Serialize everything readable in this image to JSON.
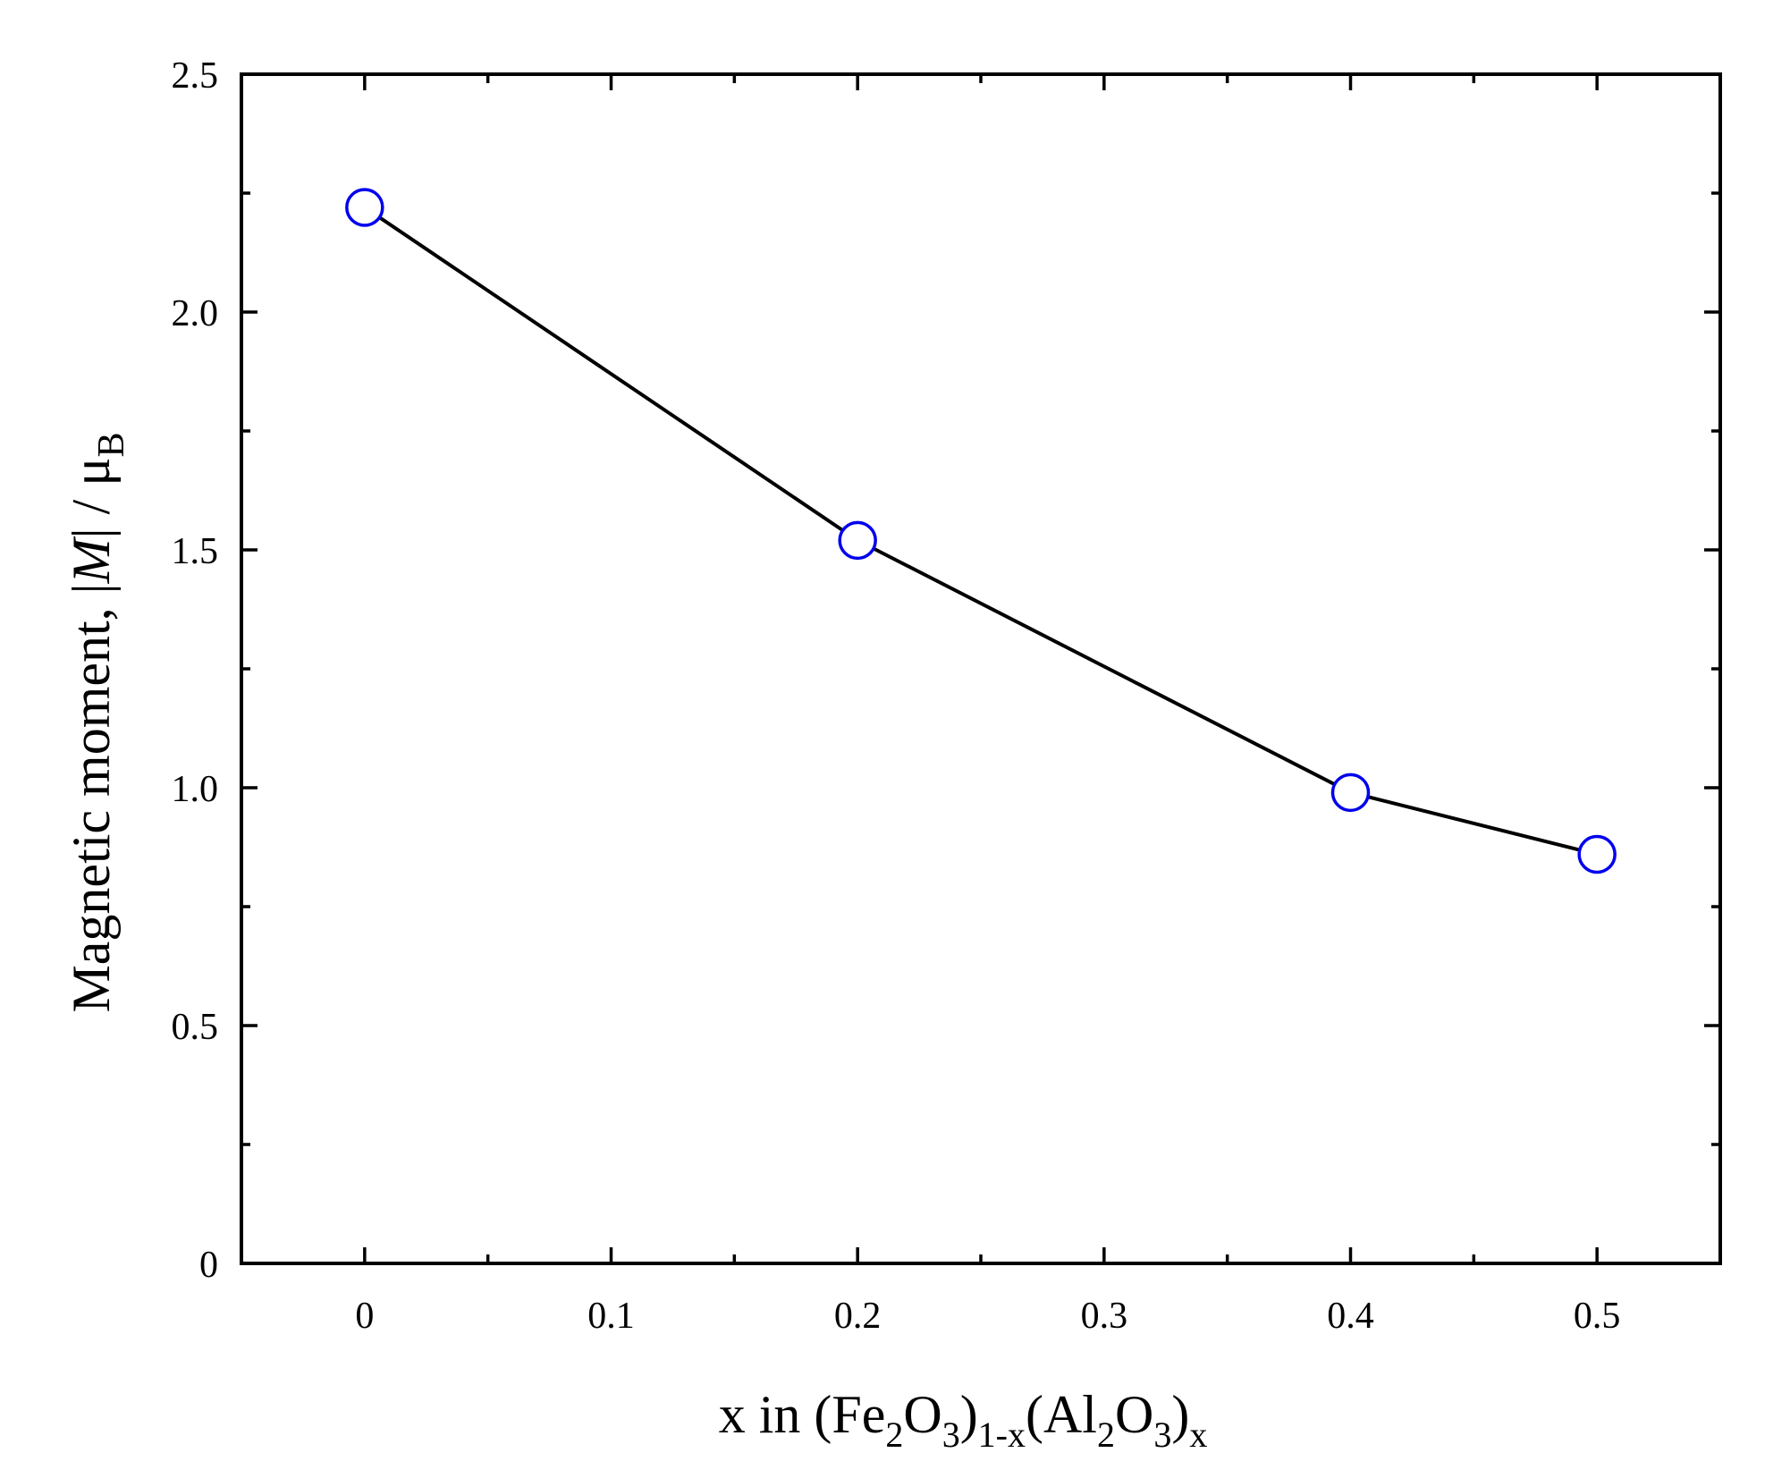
{
  "chart_data": {
    "type": "line",
    "xlabel": {
      "main": "x in (Fe",
      "s1": "2",
      "m2": "O",
      "s2": "3",
      "m3": ")",
      "s3": "1-x",
      "m4": "(Al",
      "s4": "2",
      "m5": "O",
      "s5": "3",
      "m6": ")",
      "s6": "x"
    },
    "ylabel": {
      "main": "Magnetic moment,  |",
      "italic": "M",
      "rest": "| / μ",
      "sub": "B"
    },
    "xlim": [
      -0.05,
      0.55
    ],
    "ylim": [
      0,
      2.5
    ],
    "xticks": [
      {
        "value": 0,
        "label": "0"
      },
      {
        "value": 0.1,
        "label": "0.1"
      },
      {
        "value": 0.2,
        "label": "0.2"
      },
      {
        "value": 0.3,
        "label": "0.3"
      },
      {
        "value": 0.4,
        "label": "0.4"
      },
      {
        "value": 0.5,
        "label": "0.5"
      }
    ],
    "xminor": [
      -0.05,
      0.05,
      0.15,
      0.25,
      0.35,
      0.45,
      0.55
    ],
    "yticks": [
      {
        "value": 0,
        "label": "0"
      },
      {
        "value": 0.5,
        "label": "0.5"
      },
      {
        "value": 1.0,
        "label": "1.0"
      },
      {
        "value": 1.5,
        "label": "1.5"
      },
      {
        "value": 2.0,
        "label": "2.0"
      },
      {
        "value": 2.5,
        "label": "2.5"
      }
    ],
    "yminor": [
      0.25,
      0.75,
      1.25,
      1.75,
      2.25
    ],
    "series": [
      {
        "x": [
          0,
          0.2,
          0.4,
          0.5
        ],
        "y": [
          2.22,
          1.52,
          0.99,
          0.86
        ],
        "line_color": "#000000",
        "marker": "open-circle",
        "marker_color": "#0000ee"
      }
    ],
    "grid": false,
    "legend": "none"
  }
}
